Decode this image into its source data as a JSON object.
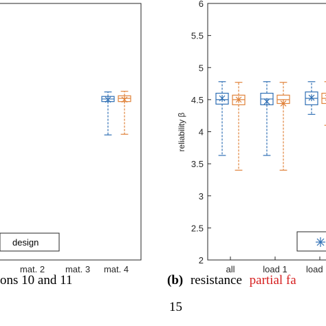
{
  "colors": {
    "design": "#2f6fb4",
    "other": "#e0823a",
    "axis": "#262626",
    "caption_highlight": "#d61f1f"
  },
  "captions": {
    "left": "ons 10 and 11",
    "right_label": "(b)",
    "right_prefix": "resistance",
    "right_highlight": "partial fa",
    "footer": "15"
  },
  "chart_data": [
    {
      "type": "box",
      "panel": "left (cropped)",
      "categories": [
        "mat. 2",
        "mat. 3",
        "mat. 4"
      ],
      "ylim": [
        2,
        6
      ],
      "legend": {
        "entries": [
          "design"
        ],
        "placement": "bottom-left"
      },
      "series": [
        {
          "color": "blue",
          "boxes": [
            null,
            null,
            {
              "min": 3.95,
              "q1": 4.47,
              "median": 4.51,
              "q3": 4.55,
              "max": 4.62,
              "mean": 4.5
            }
          ]
        },
        {
          "color": "orange",
          "boxes": [
            null,
            null,
            {
              "min": 3.96,
              "q1": 4.47,
              "median": 4.52,
              "q3": 4.56,
              "max": 4.63,
              "mean": 4.5
            }
          ]
        }
      ]
    },
    {
      "type": "box",
      "panel": "right (cropped)",
      "ylabel": "reliability β",
      "ylim": [
        2,
        6
      ],
      "yticks": [
        "2",
        "2.5",
        "3",
        "3.5",
        "4",
        "4.5",
        "5",
        "5.5",
        "6"
      ],
      "categories": [
        "all",
        "load 1",
        "load"
      ],
      "legend": {
        "entries": [
          ""
        ],
        "placement": "bottom-right"
      },
      "series": [
        {
          "color": "blue",
          "boxes": [
            {
              "min": 3.63,
              "q1": 4.43,
              "median": 4.5,
              "q3": 4.6,
              "max": 4.78,
              "mean": 4.52
            },
            {
              "min": 3.63,
              "q1": 4.42,
              "median": 4.51,
              "q3": 4.6,
              "max": 4.78,
              "mean": 4.47
            },
            {
              "min": 4.27,
              "q1": 4.42,
              "median": 4.52,
              "q3": 4.62,
              "max": 4.78,
              "mean": 4.53
            }
          ]
        },
        {
          "color": "orange",
          "boxes": [
            {
              "min": 3.4,
              "q1": 4.42,
              "median": 4.5,
              "q3": 4.57,
              "max": 4.77,
              "mean": 4.5
            },
            {
              "min": 3.4,
              "q1": 4.44,
              "median": 4.5,
              "q3": 4.57,
              "max": 4.77,
              "mean": 4.44
            },
            {
              "min": 4.1,
              "q1": 4.44,
              "median": 4.52,
              "q3": 4.6,
              "max": 4.78,
              "mean": 4.53
            }
          ]
        }
      ]
    }
  ]
}
